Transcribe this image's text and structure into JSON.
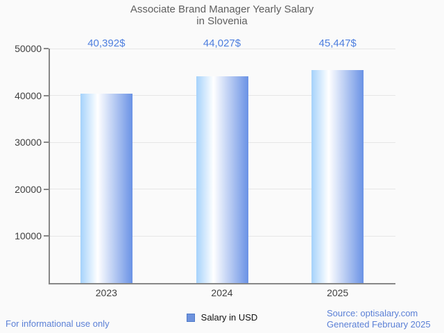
{
  "header": {
    "title_line1": "Associate Brand Manager Yearly Salary",
    "title_line2": "in Slovenia"
  },
  "chart_data": {
    "type": "bar",
    "title": "Associate Brand Manager Yearly Salary in Slovenia",
    "categories": [
      "2023",
      "2024",
      "2025"
    ],
    "values": [
      40392,
      44027,
      45447
    ],
    "value_labels": [
      "40,392$",
      "44,027$",
      "45,447$"
    ],
    "series_name": "Salary in USD",
    "xlabel": "",
    "ylabel": "",
    "ylim": [
      0,
      50000
    ],
    "yticks": [
      10000,
      20000,
      30000,
      40000,
      50000
    ],
    "ytick_labels": [
      "10000",
      "20000",
      "30000",
      "40000",
      "50000"
    ],
    "grid": "horizontal",
    "legend_position": "bottom-center"
  },
  "legend": {
    "label": "Salary in USD"
  },
  "footer": {
    "left_note": "For informational use only",
    "source_line1": "Source: optisalary.com",
    "source_line2": "Generated February 2025"
  },
  "colors": {
    "background": "#fafafa",
    "title_gray": "#5f5f5f",
    "tick_label_gray": "#3f3f3f",
    "axis_gray": "#878787",
    "gridline_gray": "#e6e6e6",
    "value_label_blue": "#4e7fdf",
    "footer_blue": "#5b80d6",
    "bar_gradient_left": "#a5d2fb",
    "bar_gradient_mid": "#ffffff",
    "bar_gradient_right": "#6a92e5",
    "legend_marker_fill": "#6d92dd",
    "legend_marker_border": "#4f7ac8"
  }
}
